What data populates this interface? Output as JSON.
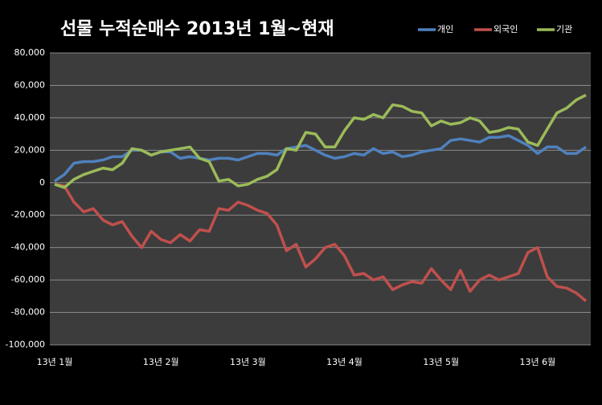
{
  "chart_data": {
    "type": "line",
    "title": "선물 누적순매수 2013년 1월~현재",
    "categories": [
      "13년 1월",
      null,
      null,
      null,
      null,
      null,
      null,
      null,
      null,
      null,
      null,
      "13년 2월",
      null,
      null,
      null,
      null,
      null,
      null,
      null,
      null,
      "13년 3월",
      null,
      null,
      null,
      null,
      null,
      null,
      null,
      null,
      null,
      "13년 4월",
      null,
      null,
      null,
      null,
      null,
      null,
      null,
      null,
      null,
      "13년 5월",
      null,
      null,
      null,
      null,
      null,
      null,
      null,
      null,
      null,
      "13년 6월",
      null,
      null,
      null,
      null,
      null
    ],
    "series": [
      {
        "name": "개인",
        "color": "#4f81bd",
        "values": [
          1000,
          5000,
          12000,
          13000,
          13000,
          14000,
          16000,
          16000,
          20000,
          20000,
          17000,
          19000,
          19000,
          15000,
          16000,
          15000,
          14000,
          15000,
          15000,
          14000,
          16000,
          18000,
          18000,
          17000,
          21000,
          22000,
          23000,
          20000,
          17000,
          15000,
          16000,
          18000,
          17000,
          21000,
          18000,
          19000,
          16000,
          17000,
          19000,
          20000,
          21000,
          26000,
          27000,
          26000,
          25000,
          28000,
          28000,
          29000,
          26000,
          23000,
          18000,
          22000,
          22000,
          18000,
          18000,
          22000
        ]
      },
      {
        "name": "외국인",
        "color": "#c0504d",
        "values": [
          -1000,
          -2000,
          -12000,
          -18000,
          -16000,
          -23000,
          -26000,
          -24000,
          -33000,
          -40000,
          -30000,
          -35000,
          -37000,
          -32000,
          -36000,
          -29000,
          -30000,
          -16000,
          -17000,
          -12000,
          -14000,
          -17000,
          -19000,
          -26000,
          -42000,
          -38000,
          -52000,
          -47000,
          -40000,
          -38000,
          -45000,
          -57000,
          -56000,
          -60000,
          -58000,
          -66000,
          -63000,
          -61000,
          -62000,
          -53000,
          -60000,
          -66000,
          -54000,
          -67000,
          -60000,
          -57000,
          -60000,
          -58000,
          -56000,
          -43000,
          -40000,
          -58000,
          -64000,
          -65000,
          -68000,
          -73000
        ]
      },
      {
        "name": "기관",
        "color": "#9bbb59",
        "values": [
          -1000,
          -3000,
          2000,
          5000,
          7000,
          9000,
          8000,
          12000,
          21000,
          20000,
          17000,
          19000,
          20000,
          21000,
          22000,
          15000,
          13000,
          1000,
          2000,
          -2000,
          -1000,
          2000,
          4000,
          8000,
          21000,
          20000,
          31000,
          30000,
          22000,
          22000,
          32000,
          40000,
          39000,
          42000,
          40000,
          48000,
          47000,
          44000,
          43000,
          35000,
          38000,
          36000,
          37000,
          40000,
          38000,
          31000,
          32000,
          34000,
          33000,
          25000,
          23000,
          33000,
          43000,
          46000,
          51000,
          54000
        ]
      }
    ],
    "ylim": [
      -100000,
      80000
    ],
    "yticks": [
      {
        "value": -100000,
        "label": "-100,000"
      },
      {
        "value": -80000,
        "label": "-80,000"
      },
      {
        "value": -60000,
        "label": "-60,000"
      },
      {
        "value": -40000,
        "label": "-40,000"
      },
      {
        "value": -20000,
        "label": "-20,000"
      },
      0,
      {
        "value": 20000,
        "label": "20,000"
      },
      {
        "value": 40000,
        "label": "40,000"
      },
      {
        "value": 60000,
        "label": "60,000"
      },
      {
        "value": 80000,
        "label": "80,000"
      }
    ],
    "grid": true
  }
}
